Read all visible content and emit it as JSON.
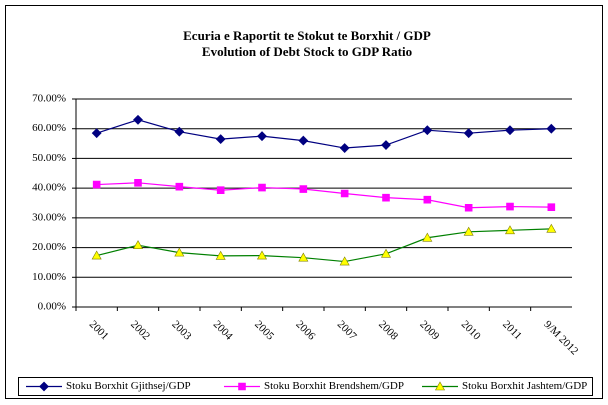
{
  "chart_data": {
    "type": "line",
    "title": "Ecuria e Raportit te Stokut te Borxhit / GDP",
    "subtitle": "Evolution of Debt Stock to GDP Ratio",
    "categories": [
      "2001",
      "2002",
      "2003",
      "2004",
      "2005",
      "2006",
      "2007",
      "2008",
      "2009",
      "2010",
      "2011",
      "9/M 2012"
    ],
    "series": [
      {
        "name": "Stoku Borxhit Gjithsej/GDP",
        "color": "#000080",
        "marker_color": "#000080",
        "marker": "diamond",
        "values": [
          58.5,
          63,
          59,
          56.5,
          57.5,
          56,
          53.5,
          54.5,
          59.5,
          58.5,
          59.5,
          60
        ]
      },
      {
        "name": "Stoku Borxhit Brendshem/GDP",
        "color": "#ff00ff",
        "marker_color": "#ff00ff",
        "marker": "square",
        "values": [
          41.2,
          41.8,
          40.5,
          39.3,
          40.2,
          39.7,
          38.2,
          36.8,
          36.1,
          33.4,
          33.8,
          33.6
        ]
      },
      {
        "name": "Stoku Borxhit Jashtem/GDP",
        "color": "#008000",
        "marker_color": "#ffff00",
        "marker": "triangle",
        "values": [
          17.3,
          20.8,
          18.3,
          17.2,
          17.3,
          16.6,
          15.3,
          17.9,
          23.3,
          25.3,
          25.8,
          26.3
        ]
      }
    ],
    "ylim": [
      0,
      70
    ],
    "yticks": [
      {
        "value": 0,
        "label": "0.00%"
      },
      {
        "value": 10,
        "label": "10.00%"
      },
      {
        "value": 20,
        "label": "20.00%"
      },
      {
        "value": 30,
        "label": "30.00%"
      },
      {
        "value": 40,
        "label": "40.00%"
      },
      {
        "value": 50,
        "label": "50.00%"
      },
      {
        "value": 60,
        "label": "60.00%"
      },
      {
        "value": 70,
        "label": "70.00%"
      }
    ],
    "grid": true,
    "legend": "bottom",
    "title_color": "#ff0000"
  }
}
